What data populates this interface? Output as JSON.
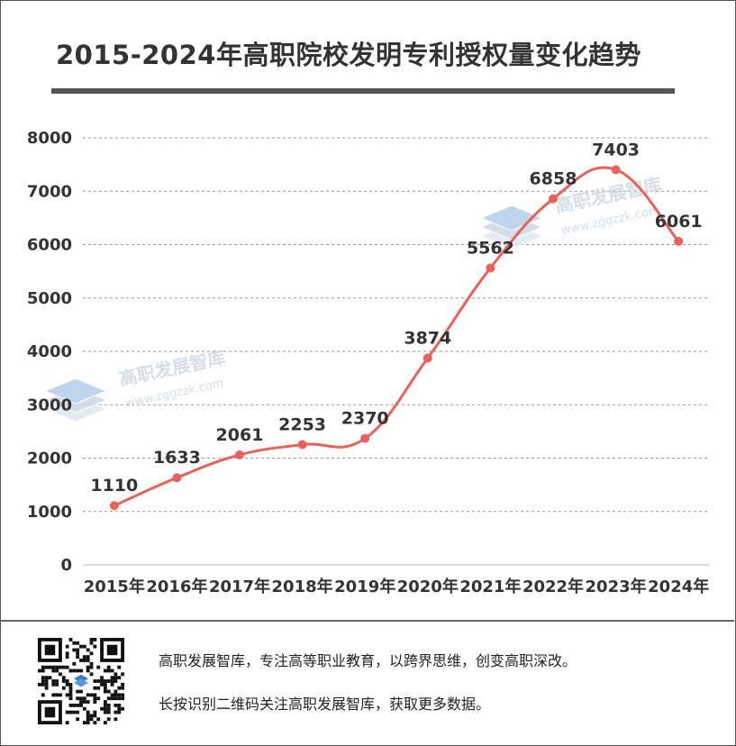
{
  "title": "2015-2024年高职院校发明专利授权量变化趋势",
  "chart_data": {
    "type": "line",
    "smooth": true,
    "title": "2015-2024年高职院校发明专利授权量变化趋势",
    "categories": [
      "2015年",
      "2016年",
      "2017年",
      "2018年",
      "2019年",
      "2020年",
      "2021年",
      "2022年",
      "2023年",
      "2024年"
    ],
    "series": [
      {
        "name": "发明专利授权量",
        "values": [
          1110,
          1633,
          2061,
          2253,
          2370,
          3874,
          5562,
          6858,
          7403,
          6061
        ],
        "color": "#e8625a"
      }
    ],
    "data_labels": [
      "1110",
      "1633",
      "2061",
      "2253",
      "2370",
      "3874",
      "5562",
      "6858",
      "7403",
      "6061"
    ],
    "y_ticks": [
      "0",
      "1000",
      "2000",
      "3000",
      "4000",
      "5000",
      "6000",
      "7000",
      "8000"
    ],
    "ylim": [
      0,
      8000
    ],
    "grid": true,
    "xlabel": "",
    "ylabel": ""
  },
  "watermark": {
    "name": "高职发展智库",
    "url": "www.zggzzk.com"
  },
  "footer": {
    "line1": "高职发展智库，专注高等职业教育，以跨界思维，创变高职深改。",
    "line2": "长按识别二维码关注高职发展智库，获取更多数据。"
  },
  "colors": {
    "line": "#e8625a",
    "text": "#333333",
    "grid": "#999999",
    "title_bar": "#555555"
  }
}
